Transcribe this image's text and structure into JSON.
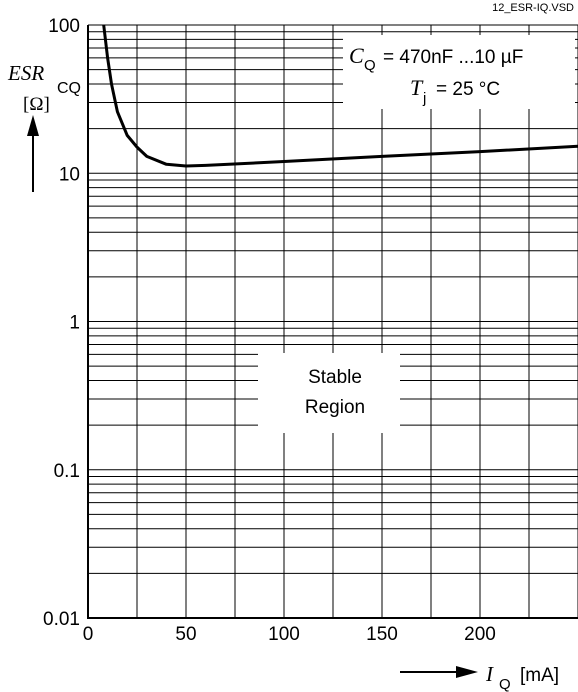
{
  "chart_data": {
    "type": "line",
    "file_label": "12_ESR-IQ.VSD",
    "x": [
      8,
      10,
      12,
      15,
      20,
      25,
      30,
      40,
      50,
      60,
      100,
      150,
      200,
      250
    ],
    "series": [
      {
        "values": [
          100,
          60,
          40,
          26,
          18,
          15,
          13,
          11.5,
          11.2,
          11.3,
          12,
          13,
          14,
          15.2
        ]
      }
    ],
    "xlim": [
      0,
      250
    ],
    "ylim": [
      0.01,
      100
    ],
    "yscale": "log",
    "x_ticks": [
      "0",
      "50",
      "100",
      "150",
      "200"
    ],
    "y_ticks": [
      "0.01",
      "0.1",
      "1",
      "10",
      "100"
    ],
    "y_label": {
      "main": "ESR",
      "sub": "CQ",
      "unit": "[Ω]"
    },
    "x_label": {
      "main": "I",
      "sub": "Q",
      "unit": "[mA]"
    },
    "annotation_cq": {
      "symbol": "C",
      "sub": "Q",
      "text": "= 470nF ...10 µF"
    },
    "annotation_tj": {
      "symbol": "T",
      "sub": "j",
      "text": "= 25 °C"
    },
    "region_label_1": "Stable",
    "region_label_2": "Region",
    "grid": true
  }
}
